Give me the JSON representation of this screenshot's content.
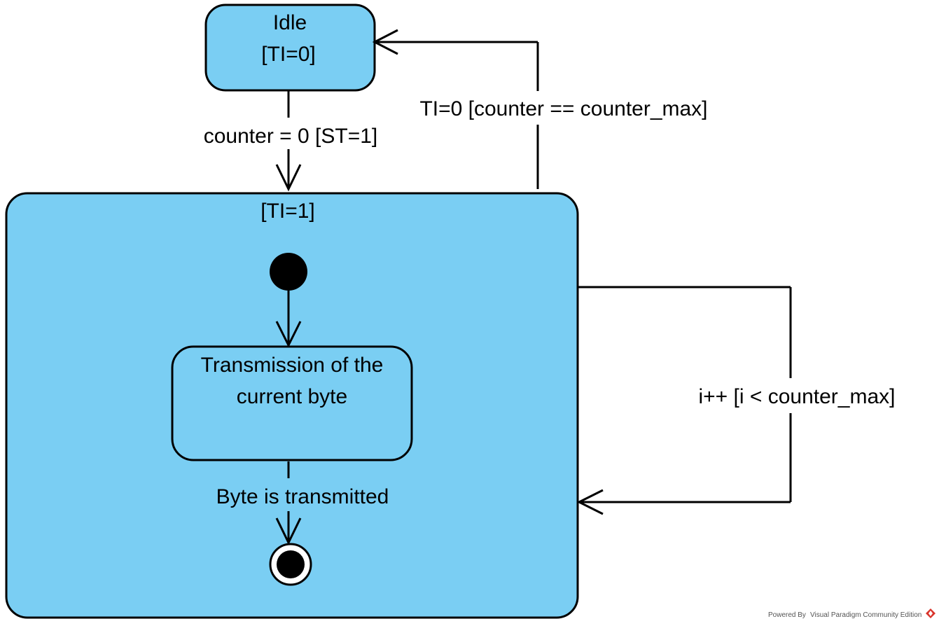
{
  "diagram": {
    "states": {
      "idle": {
        "name": "Idle",
        "invariant": "[TI=0]"
      },
      "active": {
        "invariant": "[TI=1]"
      },
      "transmission": {
        "line1": "Transmission of the",
        "line2": "current byte"
      }
    },
    "transitions": {
      "idle_to_active": "counter = 0 [ST=1]",
      "active_to_idle": "TI=0 [counter == counter_max]",
      "self_loop": "i++ [i < counter_max]",
      "transmission_to_final": "Byte is transmitted"
    }
  },
  "watermark": {
    "prefix": "Powered By",
    "product": "Visual Paradigm Community Edition"
  },
  "colors": {
    "state_fill": "#7ACEF3",
    "stroke": "#000000",
    "background": "#FFFFFF"
  }
}
